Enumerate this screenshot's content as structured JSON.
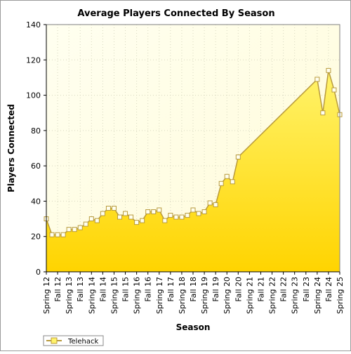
{
  "chart_data": {
    "type": "area",
    "title": "Average Players Connected By Season",
    "xlabel": "Season",
    "ylabel": "Players Connected",
    "ylim": [
      0,
      140
    ],
    "yticks": [
      0,
      20,
      40,
      60,
      80,
      100,
      120,
      140
    ],
    "grid": true,
    "legend": "bottom-left",
    "categories": [
      "Spring 12",
      "Fall 12",
      "Spring 13",
      "Fall 13",
      "Spring 14",
      "Fall 14",
      "Spring 15",
      "Fall 15",
      "Spring 16",
      "Fall 16",
      "Spring 17",
      "Fall 17",
      "Spring 18",
      "Fall 18",
      "Spring 19",
      "Fall 19",
      "Spring 20",
      "Fall 20",
      "Spring 21",
      "Fall 21",
      "Spring 22",
      "Fall 22",
      "Spring 23",
      "Fall 23",
      "Spring 24",
      "Fall 24",
      "Spring 25"
    ],
    "series": [
      {
        "name": "Telehack",
        "fill_top": "#FFF36A",
        "fill_bottom": "#FFD400",
        "line_color": "#B89A3C",
        "points": [
          [
            0.0,
            30
          ],
          [
            0.5,
            21
          ],
          [
            1.0,
            21
          ],
          [
            1.5,
            21
          ],
          [
            2.0,
            24
          ],
          [
            2.5,
            24
          ],
          [
            3.0,
            25
          ],
          [
            3.5,
            27
          ],
          [
            4.0,
            30
          ],
          [
            4.5,
            29
          ],
          [
            5.0,
            33
          ],
          [
            5.5,
            36
          ],
          [
            6.0,
            36
          ],
          [
            6.5,
            31
          ],
          [
            7.0,
            33
          ],
          [
            7.5,
            31
          ],
          [
            8.0,
            28
          ],
          [
            8.5,
            29
          ],
          [
            9.0,
            34
          ],
          [
            9.5,
            34
          ],
          [
            10.0,
            35
          ],
          [
            10.5,
            29
          ],
          [
            11.0,
            32
          ],
          [
            11.5,
            31
          ],
          [
            12.0,
            31
          ],
          [
            12.5,
            32
          ],
          [
            13.0,
            35
          ],
          [
            13.5,
            33
          ],
          [
            14.0,
            34
          ],
          [
            14.5,
            39
          ],
          [
            15.0,
            38
          ],
          [
            15.5,
            50
          ],
          [
            16.0,
            54
          ],
          [
            16.5,
            51
          ],
          [
            17.0,
            65
          ],
          [
            24.0,
            109
          ],
          [
            24.5,
            90
          ],
          [
            25.0,
            114
          ],
          [
            25.5,
            103
          ],
          [
            26.0,
            89
          ]
        ]
      }
    ]
  }
}
